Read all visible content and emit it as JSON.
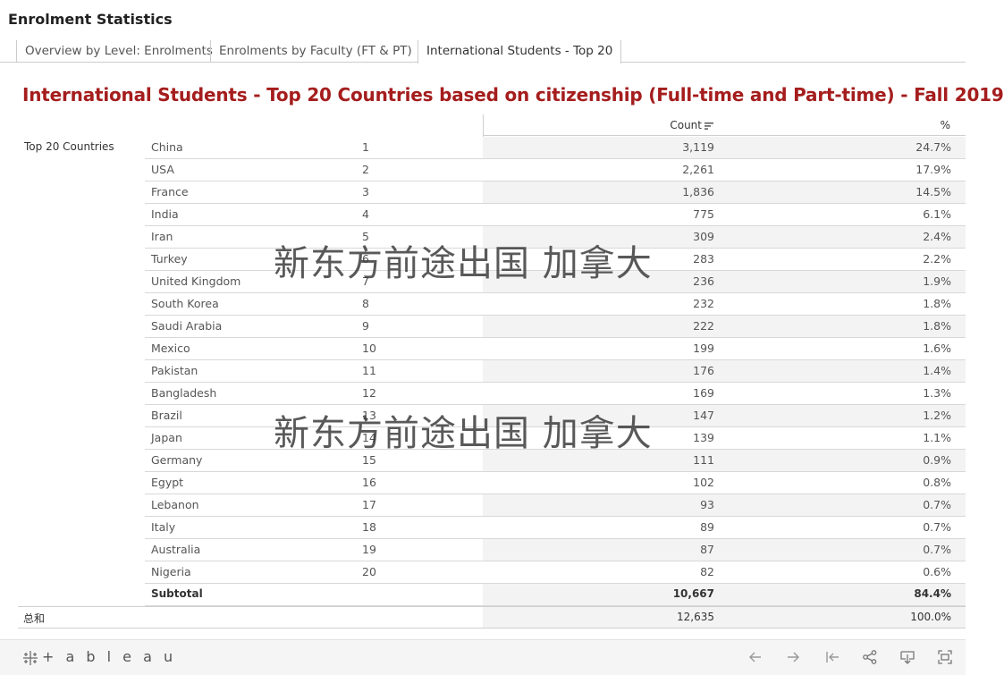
{
  "app": {
    "title": "Enrolment Statistics"
  },
  "tabs": [
    {
      "label": "Overview by Level: Enrolments",
      "active": false
    },
    {
      "label": "Enrolments by Faculty (FT & PT)",
      "active": false
    },
    {
      "label": "International Students - Top 20",
      "active": true
    }
  ],
  "view": {
    "title": "International Students - Top 20 Countries based on citizenship (Full-time and Part-time) - Fall 2019"
  },
  "table": {
    "columns": {
      "count": "Count",
      "pct": "%"
    },
    "row_group_label": "Top 20 Countries",
    "rows": [
      {
        "country": "China",
        "rank": "1",
        "count": "3,119",
        "pct": "24.7%"
      },
      {
        "country": "USA",
        "rank": "2",
        "count": "2,261",
        "pct": "17.9%"
      },
      {
        "country": "France",
        "rank": "3",
        "count": "1,836",
        "pct": "14.5%"
      },
      {
        "country": "India",
        "rank": "4",
        "count": "775",
        "pct": "6.1%"
      },
      {
        "country": "Iran",
        "rank": "5",
        "count": "309",
        "pct": "2.4%"
      },
      {
        "country": "Turkey",
        "rank": "6",
        "count": "283",
        "pct": "2.2%"
      },
      {
        "country": "United Kingdom",
        "rank": "7",
        "count": "236",
        "pct": "1.9%"
      },
      {
        "country": "South Korea",
        "rank": "8",
        "count": "232",
        "pct": "1.8%"
      },
      {
        "country": "Saudi Arabia",
        "rank": "9",
        "count": "222",
        "pct": "1.8%"
      },
      {
        "country": "Mexico",
        "rank": "10",
        "count": "199",
        "pct": "1.6%"
      },
      {
        "country": "Pakistan",
        "rank": "11",
        "count": "176",
        "pct": "1.4%"
      },
      {
        "country": "Bangladesh",
        "rank": "12",
        "count": "169",
        "pct": "1.3%"
      },
      {
        "country": "Brazil",
        "rank": "13",
        "count": "147",
        "pct": "1.2%"
      },
      {
        "country": "Japan",
        "rank": "14",
        "count": "139",
        "pct": "1.1%"
      },
      {
        "country": "Germany",
        "rank": "15",
        "count": "111",
        "pct": "0.9%"
      },
      {
        "country": "Egypt",
        "rank": "16",
        "count": "102",
        "pct": "0.8%"
      },
      {
        "country": "Lebanon",
        "rank": "17",
        "count": "93",
        "pct": "0.7%"
      },
      {
        "country": "Italy",
        "rank": "18",
        "count": "89",
        "pct": "0.7%"
      },
      {
        "country": "Australia",
        "rank": "19",
        "count": "87",
        "pct": "0.7%"
      },
      {
        "country": "Nigeria",
        "rank": "20",
        "count": "82",
        "pct": "0.6%"
      }
    ],
    "subtotal": {
      "label": "Subtotal",
      "count": "10,667",
      "pct": "84.4%"
    },
    "grand_total": {
      "label": "总和",
      "count": "12,635",
      "pct": "100.0%"
    }
  },
  "watermark": {
    "text": "新东方前途出国 加拿大"
  },
  "footer": {
    "logo_text": "+ a b l e a u",
    "icons": [
      "back-arrow-icon",
      "forward-arrow-icon",
      "revert-icon",
      "share-icon",
      "download-icon",
      "fullscreen-icon"
    ]
  }
}
